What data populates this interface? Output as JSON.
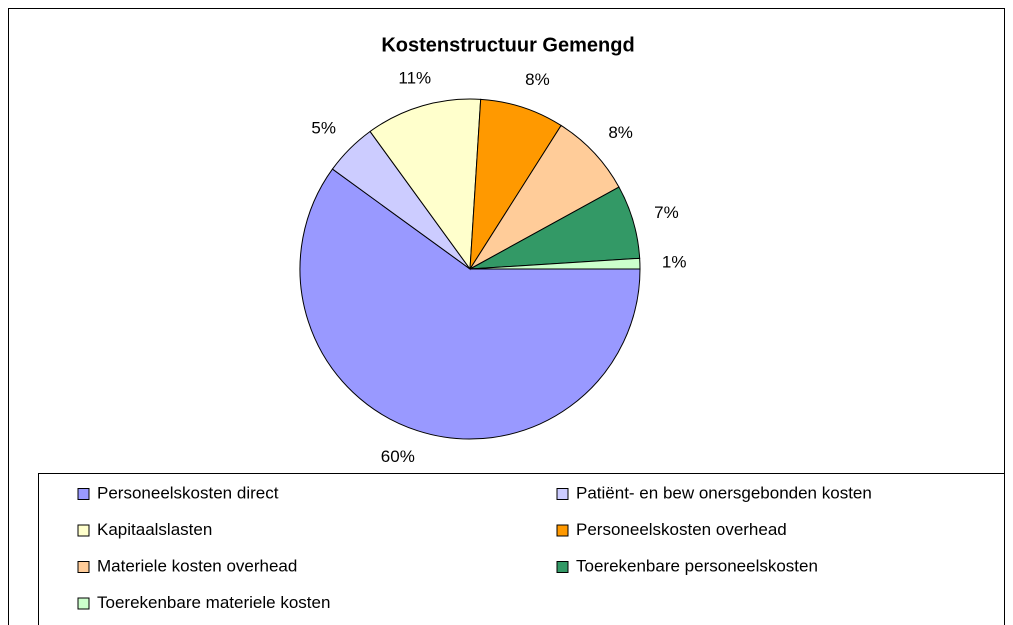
{
  "chart_data": {
    "type": "pie",
    "title": "Kostenstructuur Gemengd",
    "categories": [
      "Personeelskosten direct",
      "Patiënt- en bew onersgebonden kosten",
      "Kapitaalslasten",
      "Personeelskosten overhead",
      "Materiele kosten overhead",
      "Toerekenbare personeelskosten",
      "Toerekenbare materiele kosten"
    ],
    "values": [
      60,
      5,
      11,
      8,
      8,
      7,
      1
    ],
    "value_labels": [
      "60%",
      "5%",
      "11%",
      "8%",
      "8%",
      "7%",
      "1%"
    ],
    "colors": [
      "#9999ff",
      "#ccccff",
      "#ffffcc",
      "#ff9900",
      "#ffcc99",
      "#339966",
      "#ccffcc"
    ],
    "legend": "bottom"
  }
}
